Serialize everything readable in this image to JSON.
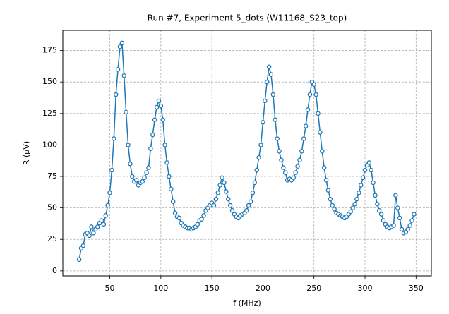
{
  "chart_data": {
    "type": "line",
    "title": "Run #7, Experiment 5_dots (W11168_S23_top)",
    "x_label": "f (MHz)",
    "y_label": "R (µV)",
    "x": [
      20,
      22,
      24,
      26,
      28,
      30,
      32,
      34,
      36,
      38,
      40,
      42,
      44,
      46,
      48,
      50,
      52,
      54,
      56,
      58,
      60,
      62,
      64,
      66,
      68,
      70,
      72,
      74,
      76,
      78,
      80,
      82,
      84,
      86,
      88,
      90,
      92,
      94,
      96,
      98,
      100,
      102,
      104,
      106,
      108,
      110,
      112,
      114,
      116,
      118,
      120,
      122,
      124,
      126,
      128,
      130,
      132,
      134,
      136,
      138,
      140,
      142,
      144,
      146,
      148,
      150,
      152,
      154,
      156,
      158,
      160,
      162,
      164,
      166,
      168,
      170,
      172,
      174,
      176,
      178,
      180,
      182,
      184,
      186,
      188,
      190,
      192,
      194,
      196,
      198,
      200,
      202,
      204,
      206,
      208,
      210,
      212,
      214,
      216,
      218,
      220,
      222,
      224,
      226,
      228,
      230,
      232,
      234,
      236,
      238,
      240,
      242,
      244,
      246,
      248,
      250,
      252,
      254,
      256,
      258,
      260,
      262,
      264,
      266,
      268,
      270,
      272,
      274,
      276,
      278,
      280,
      282,
      284,
      286,
      288,
      290,
      292,
      294,
      296,
      298,
      300,
      302,
      304,
      306,
      308,
      310,
      312,
      314,
      316,
      318,
      320,
      322,
      324,
      326,
      328,
      330,
      332,
      334,
      336,
      338,
      340,
      342,
      344,
      346,
      348
    ],
    "series": [
      {
        "name": "R",
        "color": "#1f77b4",
        "values": [
          9,
          18,
          20,
          29,
          30,
          28,
          35,
          30,
          33,
          35,
          38,
          40,
          37,
          44,
          52,
          62,
          80,
          105,
          140,
          160,
          178,
          181,
          155,
          126,
          100,
          85,
          75,
          71,
          72,
          68,
          70,
          71,
          74,
          78,
          82,
          97,
          108,
          120,
          130,
          135,
          131,
          120,
          100,
          86,
          75,
          65,
          55,
          46,
          43,
          42,
          38,
          36,
          35,
          34,
          34,
          33,
          34,
          35,
          37,
          40,
          41,
          44,
          48,
          50,
          52,
          54,
          52,
          57,
          62,
          68,
          74,
          70,
          63,
          57,
          52,
          48,
          45,
          43,
          42,
          44,
          45,
          46,
          48,
          52,
          55,
          62,
          70,
          80,
          90,
          100,
          118,
          135,
          150,
          162,
          156,
          140,
          120,
          105,
          95,
          88,
          82,
          78,
          72,
          73,
          72,
          74,
          78,
          83,
          88,
          95,
          105,
          115,
          128,
          140,
          150,
          148,
          140,
          125,
          110,
          95,
          82,
          72,
          64,
          57,
          52,
          49,
          46,
          45,
          44,
          43,
          42,
          43,
          45,
          47,
          50,
          53,
          57,
          62,
          68,
          74,
          80,
          84,
          86,
          80,
          70,
          60,
          53,
          48,
          45,
          40,
          37,
          35,
          34,
          35,
          36,
          60,
          50,
          42,
          33,
          30,
          31,
          33,
          36,
          40,
          45
        ]
      }
    ],
    "xlim": [
      4,
      365
    ],
    "ylim": [
      -4,
      191
    ],
    "xticks": [
      50,
      100,
      150,
      200,
      250,
      300,
      350
    ],
    "yticks": [
      0,
      25,
      50,
      75,
      100,
      125,
      150,
      175
    ],
    "grid": true
  }
}
